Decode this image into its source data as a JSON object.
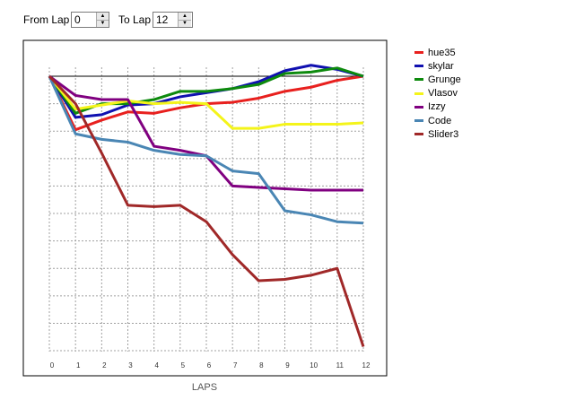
{
  "controls": {
    "from_label": "From Lap",
    "from_value": "0",
    "to_label": "To Lap",
    "to_value": "12"
  },
  "chart_data": {
    "type": "line",
    "xlabel": "LAPS",
    "ylabel": "",
    "x": [
      0,
      1,
      2,
      3,
      4,
      5,
      6,
      7,
      8,
      9,
      10,
      11,
      12
    ],
    "grid": true,
    "legend_position": "right",
    "series": [
      {
        "name": "hue35",
        "color": "#e8201e",
        "values": [
          0,
          -1.95,
          -1.6,
          -1.3,
          -1.35,
          -1.15,
          -1.0,
          -0.95,
          -0.8,
          -0.55,
          -0.4,
          -0.15,
          0
        ]
      },
      {
        "name": "skylar",
        "color": "#1010b0",
        "values": [
          0,
          -1.5,
          -1.4,
          -1.05,
          -1.0,
          -0.75,
          -0.6,
          -0.45,
          -0.2,
          0.2,
          0.4,
          0.25,
          0
        ]
      },
      {
        "name": "Grunge",
        "color": "#0d8a0d",
        "values": [
          0,
          -1.35,
          -1.0,
          -1.0,
          -0.85,
          -0.55,
          -0.55,
          -0.45,
          -0.3,
          0.1,
          0.15,
          0.3,
          0
        ]
      },
      {
        "name": "Vlasov",
        "color": "#f4f41a",
        "values": [
          0,
          -1.2,
          -1.05,
          -0.9,
          -1.0,
          -0.95,
          -1.0,
          -1.9,
          -1.9,
          -1.75,
          -1.75,
          -1.75,
          -1.7
        ]
      },
      {
        "name": "Izzy",
        "color": "#800080",
        "values": [
          0,
          -0.7,
          -0.85,
          -0.85,
          -2.55,
          -2.7,
          -2.9,
          -4.0,
          -4.05,
          -4.1,
          -4.15,
          -4.15,
          -4.15
        ]
      },
      {
        "name": "Code",
        "color": "#4a86b4",
        "values": [
          0,
          -2.1,
          -2.3,
          -2.4,
          -2.7,
          -2.85,
          -2.9,
          -3.45,
          -3.55,
          -4.9,
          -5.05,
          -5.3,
          -5.35
        ]
      },
      {
        "name": "Slider3",
        "color": "#a02828",
        "values": [
          0,
          -1.0,
          -2.8,
          -4.7,
          -4.75,
          -4.7,
          -5.3,
          -6.5,
          -7.45,
          -7.4,
          -7.25,
          -7.0,
          -9.85
        ]
      }
    ]
  }
}
